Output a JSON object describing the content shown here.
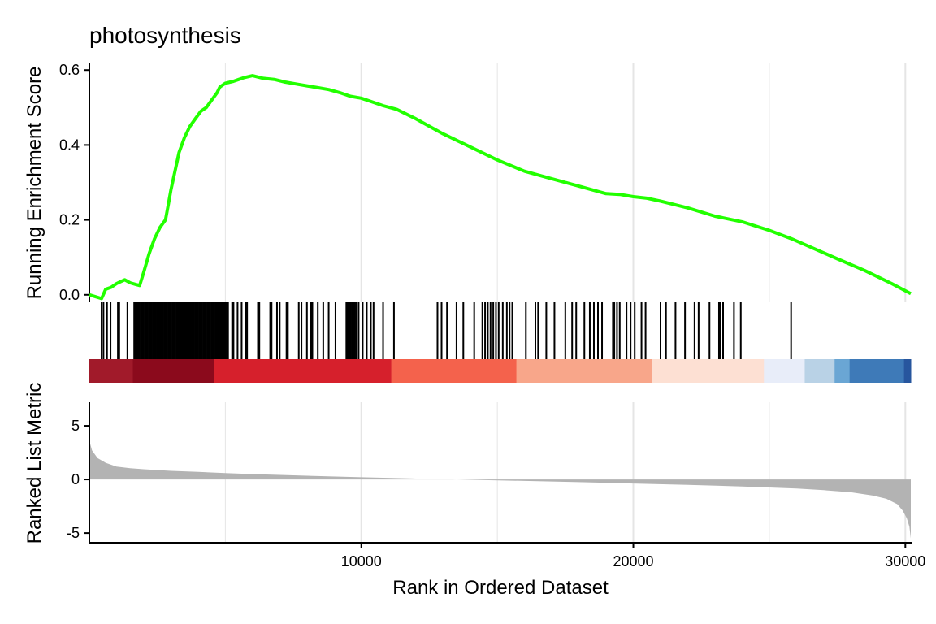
{
  "chart_data": {
    "type": "line",
    "title": "photosynthesis",
    "xlabel": "Rank in Ordered Dataset",
    "ylabel_top": "Running Enrichment Score",
    "ylabel_bottom": "Ranked List Metric",
    "xlim": [
      1,
      30200
    ],
    "x_ticks": [
      10000,
      20000,
      30000
    ],
    "x_tick_labels": [
      "10000",
      "20000",
      "30000"
    ],
    "es_ylim": [
      -0.02,
      0.62
    ],
    "es_ticks": [
      0.0,
      0.2,
      0.4,
      0.6
    ],
    "es_tick_labels": [
      "0.0",
      "0.2",
      "0.4",
      "0.6"
    ],
    "metric_ylim": [
      -5.9,
      7.2
    ],
    "metric_ticks": [
      -5,
      0,
      5
    ],
    "metric_tick_labels": [
      "-5",
      "0",
      "5"
    ],
    "grid": "vertical major gridlines",
    "colors": {
      "enrichment_line": "#22ff00",
      "hit_ticks": "#000000",
      "metric_fill": "#b3b3b3",
      "grid": "#e5e5e5",
      "axis": "#000000"
    },
    "series": [
      {
        "role": "running-enrichment-score",
        "x": [
          1,
          450,
          600,
          800,
          1000,
          1150,
          1300,
          1500,
          1700,
          1850,
          2000,
          2200,
          2400,
          2600,
          2800,
          2900,
          3000,
          3150,
          3300,
          3500,
          3700,
          3900,
          4100,
          4300,
          4500,
          4700,
          4800,
          5000,
          5300,
          5500,
          5700,
          6000,
          6400,
          6800,
          7200,
          7600,
          8000,
          8400,
          8800,
          9200,
          9600,
          10000,
          10400,
          10800,
          11300,
          12000,
          13000,
          14000,
          15000,
          16000,
          17000,
          18000,
          18500,
          19000,
          19500,
          20000,
          20500,
          21000,
          22000,
          23000,
          24000,
          25000,
          25800,
          26500,
          27500,
          28500,
          29500,
          30200
        ],
        "y": [
          0.0,
          -0.01,
          0.015,
          0.02,
          0.03,
          0.035,
          0.04,
          0.032,
          0.028,
          0.025,
          0.06,
          0.11,
          0.15,
          0.18,
          0.2,
          0.24,
          0.28,
          0.33,
          0.38,
          0.42,
          0.45,
          0.47,
          0.49,
          0.5,
          0.52,
          0.54,
          0.555,
          0.565,
          0.57,
          0.575,
          0.58,
          0.585,
          0.578,
          0.575,
          0.568,
          0.563,
          0.558,
          0.553,
          0.548,
          0.54,
          0.53,
          0.525,
          0.515,
          0.505,
          0.495,
          0.47,
          0.43,
          0.395,
          0.36,
          0.33,
          0.31,
          0.29,
          0.28,
          0.27,
          0.268,
          0.262,
          0.258,
          0.25,
          0.232,
          0.21,
          0.195,
          0.172,
          0.15,
          0.128,
          0.096,
          0.065,
          0.03,
          0.003
        ]
      },
      {
        "role": "ranked-list-metric",
        "x": [
          1,
          100,
          300,
          600,
          1000,
          1500,
          2000,
          3000,
          4000,
          5000,
          6000,
          8000,
          10000,
          12000,
          14000,
          16000,
          18000,
          20000,
          22000,
          24000,
          25000,
          26000,
          27000,
          28000,
          28800,
          29300,
          29700,
          29900,
          30050,
          30150,
          30200
        ],
        "y": [
          3.6,
          2.7,
          2.0,
          1.55,
          1.2,
          1.05,
          0.95,
          0.8,
          0.7,
          0.6,
          0.5,
          0.35,
          0.2,
          0.08,
          -0.03,
          -0.14,
          -0.25,
          -0.38,
          -0.5,
          -0.65,
          -0.75,
          -0.85,
          -1.0,
          -1.2,
          -1.5,
          -1.8,
          -2.3,
          -2.9,
          -3.6,
          -4.4,
          -5.5
        ]
      }
    ],
    "hits": [
      450,
      520,
      650,
      780,
      1050,
      1100,
      1400,
      1650,
      1700,
      1750,
      1800,
      1850,
      1900,
      1950,
      2000,
      2050,
      2100,
      2150,
      2200,
      2250,
      2300,
      2350,
      2400,
      2450,
      2500,
      2550,
      2600,
      2650,
      2700,
      2750,
      2800,
      2850,
      2900,
      2950,
      3000,
      3050,
      3100,
      3150,
      3200,
      3250,
      3300,
      3350,
      3400,
      3450,
      3500,
      3550,
      3600,
      3650,
      3700,
      3750,
      3800,
      3850,
      3900,
      3950,
      4000,
      4050,
      4100,
      4150,
      4200,
      4250,
      4300,
      4350,
      4400,
      4450,
      4500,
      4550,
      4600,
      4650,
      4700,
      4750,
      4800,
      4850,
      4900,
      4950,
      5000,
      5050,
      5100,
      5250,
      5300,
      5450,
      5600,
      5750,
      5800,
      6200,
      6250,
      6650,
      6700,
      6900,
      7000,
      7250,
      7300,
      7700,
      7800,
      8000,
      8150,
      8200,
      8400,
      8600,
      8800,
      9050,
      9450,
      9500,
      9550,
      9600,
      9650,
      9700,
      9750,
      9800,
      9900,
      10050,
      10200,
      10350,
      10450,
      10800,
      11200,
      12800,
      12950,
      13150,
      13500,
      13750,
      14150,
      14450,
      14550,
      14650,
      14750,
      14850,
      14950,
      15050,
      15200,
      15350,
      15450,
      15550,
      16050,
      16400,
      16500,
      16800,
      17100,
      17500,
      17750,
      17900,
      18200,
      18400,
      18550,
      18700,
      18850,
      19250,
      19300,
      19400,
      19500,
      19750,
      19900,
      20050,
      20300,
      20450,
      21000,
      21200,
      21550,
      21900,
      22250,
      22400,
      22800,
      23150,
      23200,
      23300,
      23700,
      23950,
      25800
    ],
    "color_bar": [
      {
        "from": 1,
        "to": 1600,
        "color": "#a11a2a"
      },
      {
        "from": 1600,
        "to": 4600,
        "color": "#8b0a1c"
      },
      {
        "from": 4600,
        "to": 11100,
        "color": "#d6202c"
      },
      {
        "from": 11100,
        "to": 15700,
        "color": "#f4624c"
      },
      {
        "from": 15700,
        "to": 20700,
        "color": "#f8a68a"
      },
      {
        "from": 20700,
        "to": 24800,
        "color": "#fde0d3"
      },
      {
        "from": 24800,
        "to": 26300,
        "color": "#e8edf9"
      },
      {
        "from": 26300,
        "to": 27400,
        "color": "#b9d2e6"
      },
      {
        "from": 27400,
        "to": 27950,
        "color": "#6aa6d4"
      },
      {
        "from": 27950,
        "to": 29950,
        "color": "#3e7ab8"
      },
      {
        "from": 29950,
        "to": 30200,
        "color": "#27569e"
      }
    ]
  }
}
